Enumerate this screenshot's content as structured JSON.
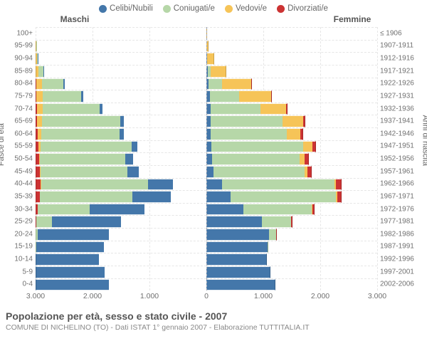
{
  "legend": [
    {
      "label": "Celibi/Nubili",
      "color": "#4477aa"
    },
    {
      "label": "Coniugati/e",
      "color": "#b6d7a8"
    },
    {
      "label": "Vedovi/e",
      "color": "#f6c458"
    },
    {
      "label": "Divorziati/e",
      "color": "#cc3333"
    }
  ],
  "headers": {
    "male": "Maschi",
    "female": "Femmine"
  },
  "axes": {
    "left_title": "Fasce di età",
    "right_title": "Anni di nascita",
    "x_max": 3000,
    "x_ticks_left": [
      3000,
      2000,
      1000,
      0
    ],
    "x_ticks_right": [
      1000,
      2000,
      3000
    ],
    "x_tick_format": "3.000|2.000|1.000|0|1.000|2.000|3.000"
  },
  "colors": {
    "grid": "#e6e6e6",
    "center": "#9ca3af",
    "bg": "#ffffff"
  },
  "bands": [
    {
      "age": "100+",
      "birth": "≤ 1906",
      "m": {
        "single": 0,
        "married": 0,
        "widowed": 0,
        "divorced": 0
      },
      "f": {
        "single": 0,
        "married": 0,
        "widowed": 7,
        "divorced": 0
      }
    },
    {
      "age": "95-99",
      "birth": "1907-1911",
      "m": {
        "single": 0,
        "married": 3,
        "widowed": 5,
        "divorced": 0
      },
      "f": {
        "single": 2,
        "married": 2,
        "widowed": 35,
        "divorced": 0
      }
    },
    {
      "age": "90-94",
      "birth": "1912-1916",
      "m": {
        "single": 2,
        "married": 20,
        "widowed": 20,
        "divorced": 0
      },
      "f": {
        "single": 8,
        "married": 10,
        "widowed": 120,
        "divorced": 0
      }
    },
    {
      "age": "85-89",
      "birth": "1917-1921",
      "m": {
        "single": 5,
        "married": 90,
        "widowed": 50,
        "divorced": 0
      },
      "f": {
        "single": 20,
        "married": 50,
        "widowed": 280,
        "divorced": 0
      }
    },
    {
      "age": "80-84",
      "birth": "1922-1926",
      "m": {
        "single": 15,
        "married": 380,
        "widowed": 100,
        "divorced": 5
      },
      "f": {
        "single": 40,
        "married": 230,
        "widowed": 520,
        "divorced": 10
      }
    },
    {
      "age": "75-79",
      "birth": "1927-1931",
      "m": {
        "single": 30,
        "married": 680,
        "widowed": 110,
        "divorced": 10
      },
      "f": {
        "single": 60,
        "married": 520,
        "widowed": 560,
        "divorced": 15
      }
    },
    {
      "age": "70-74",
      "birth": "1932-1936",
      "m": {
        "single": 45,
        "married": 1000,
        "widowed": 105,
        "divorced": 20
      },
      "f": {
        "single": 70,
        "married": 880,
        "widowed": 450,
        "divorced": 25
      }
    },
    {
      "age": "65-69",
      "birth": "1937-1941",
      "m": {
        "single": 60,
        "married": 1370,
        "widowed": 85,
        "divorced": 30
      },
      "f": {
        "single": 80,
        "married": 1260,
        "widowed": 360,
        "divorced": 40
      }
    },
    {
      "age": "60-64",
      "birth": "1942-1946",
      "m": {
        "single": 70,
        "married": 1380,
        "widowed": 55,
        "divorced": 40
      },
      "f": {
        "single": 75,
        "married": 1340,
        "widowed": 230,
        "divorced": 50
      }
    },
    {
      "age": "55-59",
      "birth": "1947-1951",
      "m": {
        "single": 100,
        "married": 1600,
        "widowed": 35,
        "divorced": 55
      },
      "f": {
        "single": 85,
        "married": 1620,
        "widowed": 160,
        "divorced": 65
      }
    },
    {
      "age": "50-54",
      "birth": "1952-1956",
      "m": {
        "single": 130,
        "married": 1500,
        "widowed": 20,
        "divorced": 60
      },
      "f": {
        "single": 95,
        "married": 1540,
        "widowed": 90,
        "divorced": 70
      }
    },
    {
      "age": "45-49",
      "birth": "1957-1961",
      "m": {
        "single": 200,
        "married": 1530,
        "widowed": 12,
        "divorced": 70
      },
      "f": {
        "single": 120,
        "married": 1600,
        "widowed": 50,
        "divorced": 80
      }
    },
    {
      "age": "40-44",
      "birth": "1962-1966",
      "m": {
        "single": 440,
        "married": 1880,
        "widowed": 8,
        "divorced": 90
      },
      "f": {
        "single": 270,
        "married": 1980,
        "widowed": 30,
        "divorced": 100
      }
    },
    {
      "age": "35-39",
      "birth": "1967-1971",
      "m": {
        "single": 680,
        "married": 1620,
        "widowed": 4,
        "divorced": 70
      },
      "f": {
        "single": 420,
        "married": 1860,
        "widowed": 15,
        "divorced": 85
      }
    },
    {
      "age": "30-34",
      "birth": "1972-1976",
      "m": {
        "single": 960,
        "married": 910,
        "widowed": 2,
        "divorced": 35
      },
      "f": {
        "single": 650,
        "married": 1200,
        "widowed": 8,
        "divorced": 45
      }
    },
    {
      "age": "25-29",
      "birth": "1977-1981",
      "m": {
        "single": 1220,
        "married": 270,
        "widowed": 0,
        "divorced": 10
      },
      "f": {
        "single": 980,
        "married": 510,
        "widowed": 2,
        "divorced": 15
      }
    },
    {
      "age": "20-24",
      "birth": "1982-1986",
      "m": {
        "single": 1250,
        "married": 40,
        "widowed": 0,
        "divorced": 0
      },
      "f": {
        "single": 1100,
        "married": 130,
        "widowed": 0,
        "divorced": 2
      }
    },
    {
      "age": "15-19",
      "birth": "1987-1991",
      "m": {
        "single": 1190,
        "married": 2,
        "widowed": 0,
        "divorced": 0
      },
      "f": {
        "single": 1080,
        "married": 8,
        "widowed": 0,
        "divorced": 0
      }
    },
    {
      "age": "10-14",
      "birth": "1992-1996",
      "m": {
        "single": 1110,
        "married": 0,
        "widowed": 0,
        "divorced": 0
      },
      "f": {
        "single": 1060,
        "married": 0,
        "widowed": 0,
        "divorced": 0
      }
    },
    {
      "age": "5-9",
      "birth": "1997-2001",
      "m": {
        "single": 1210,
        "married": 0,
        "widowed": 0,
        "divorced": 0
      },
      "f": {
        "single": 1130,
        "married": 0,
        "widowed": 0,
        "divorced": 0
      }
    },
    {
      "age": "0-4",
      "birth": "2002-2006",
      "m": {
        "single": 1290,
        "married": 0,
        "widowed": 0,
        "divorced": 0
      },
      "f": {
        "single": 1210,
        "married": 0,
        "widowed": 0,
        "divorced": 0
      }
    }
  ],
  "footer": {
    "title": "Popolazione per età, sesso e stato civile - 2007",
    "subtitle": "COMUNE DI NICHELINO (TO) - Dati ISTAT 1° gennaio 2007 - Elaborazione TUTTITALIA.IT"
  }
}
